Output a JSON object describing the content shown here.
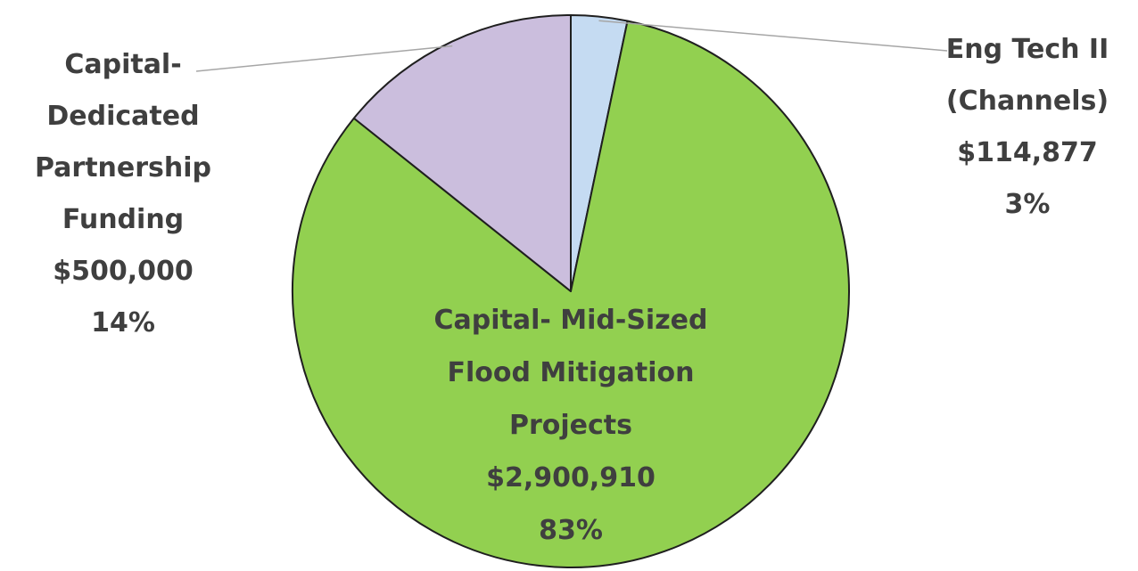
{
  "chart_data": {
    "type": "pie",
    "title": "",
    "slices": [
      {
        "label_lines": [
          "Eng Tech II",
          "(Channels)"
        ],
        "value": 114877,
        "value_label": "$114,877",
        "percent_label": "3%",
        "color": "#c5dbf2"
      },
      {
        "label_lines": [
          "Capital- Mid-Sized",
          "Flood Mitigation",
          "Projects"
        ],
        "value": 2900910,
        "value_label": "$2,900,910",
        "percent_label": "83%",
        "color": "#92d050"
      },
      {
        "label_lines": [
          "Capital-",
          "Dedicated",
          "Partnership",
          "Funding"
        ],
        "value": 500000,
        "value_label": "$500,000",
        "percent_label": "14%",
        "color": "#cbbedd"
      }
    ]
  }
}
